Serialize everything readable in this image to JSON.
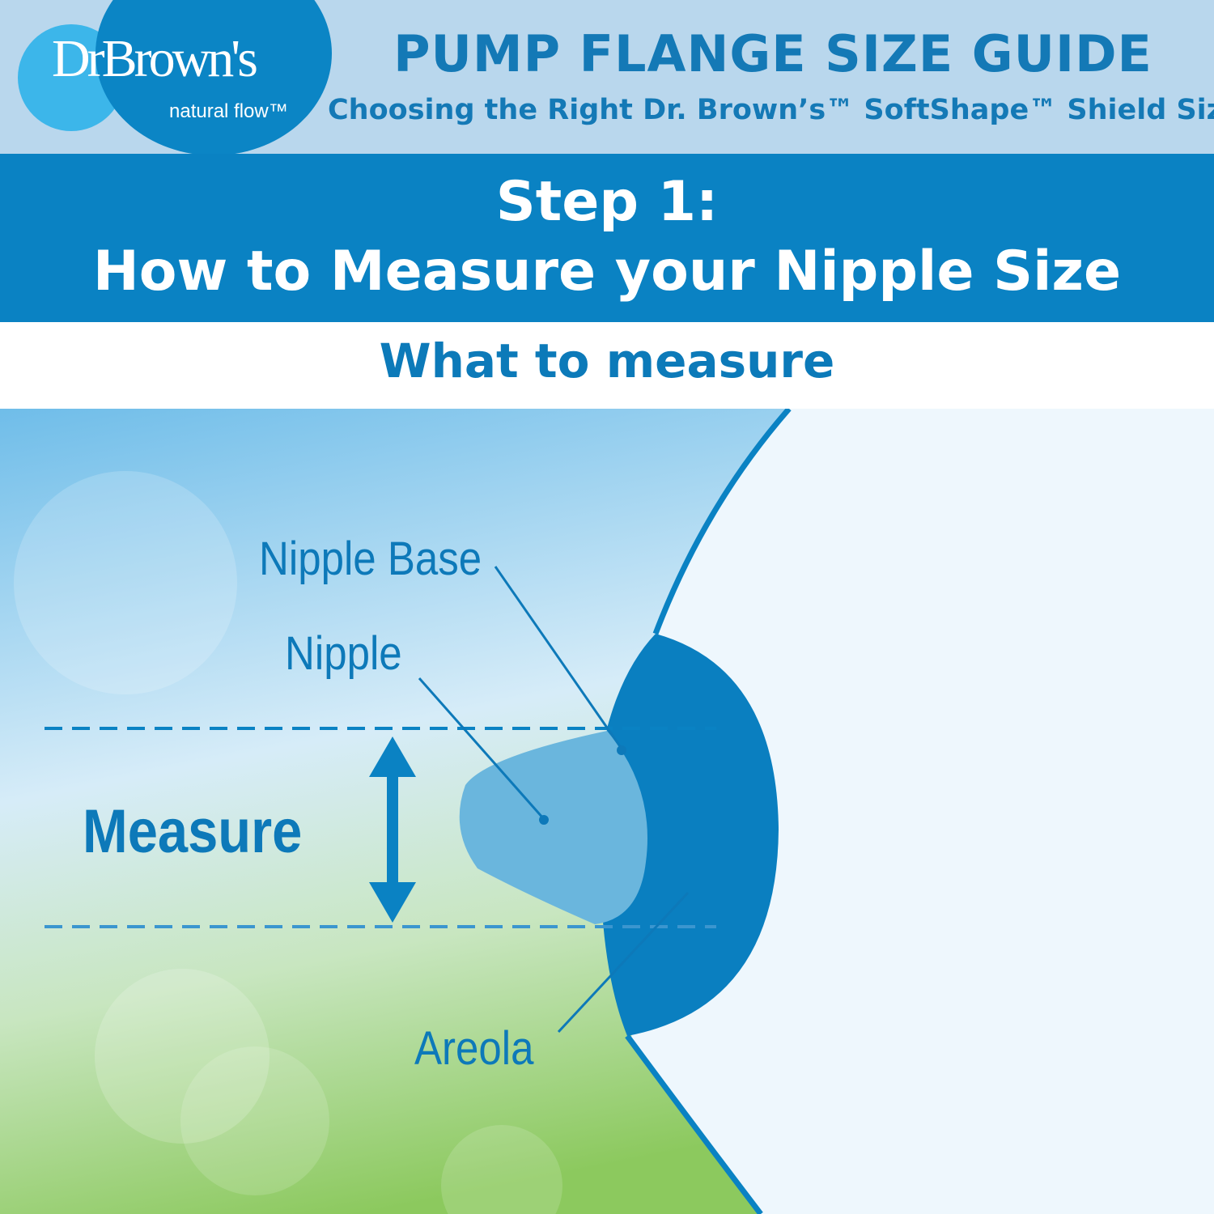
{
  "brand": {
    "logo_text": "DrBrown's",
    "logo_sub": "natural flow™"
  },
  "header": {
    "title": "PUMP FLANGE SIZE GUIDE",
    "subtitle": "Choosing the Right Dr. Brown’s™ SoftShape™ Shield Size"
  },
  "step": {
    "line1": "Step 1:",
    "line2": "How to Measure your Nipple Size"
  },
  "section_title": "What to measure",
  "labels": {
    "nipple_base": "Nipple Base",
    "nipple": "Nipple",
    "measure": "Measure",
    "areola": "Areola"
  },
  "colors": {
    "primary": "#0a82c3",
    "light_header": "#b9d7ed",
    "accent_light": "#3cb6ea",
    "nipple": "#6ab6dd"
  }
}
